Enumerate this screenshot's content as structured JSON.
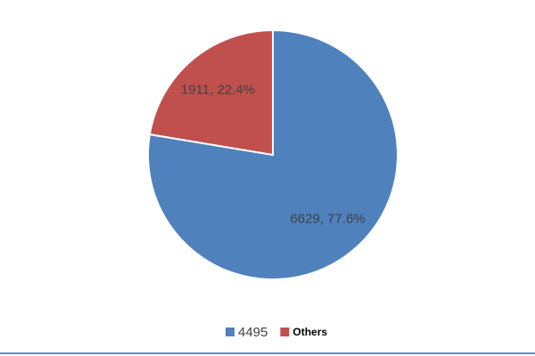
{
  "chart_data": {
    "type": "pie",
    "categories": [
      "4495",
      "Others"
    ],
    "values": [
      6629,
      1911
    ],
    "value_labels": [
      "6629, 77.6%",
      "1911, 22.4%"
    ],
    "colors": [
      "#4f81bd",
      "#c0504d"
    ],
    "legend": "bottom"
  }
}
